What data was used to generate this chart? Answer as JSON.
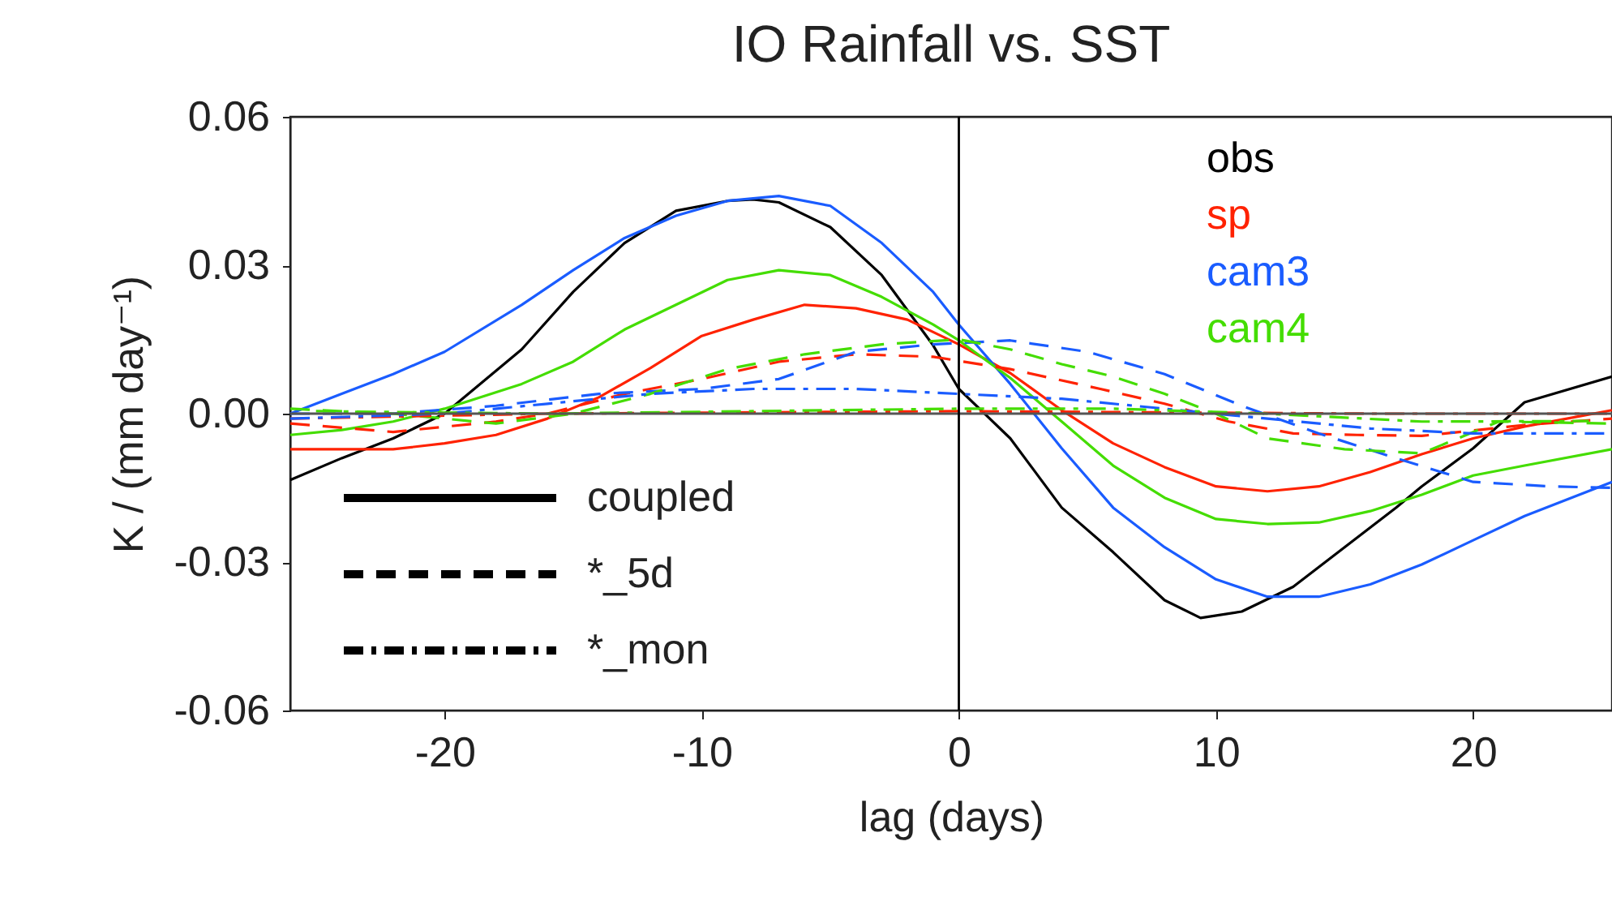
{
  "chart_data": {
    "type": "line",
    "title": "IO Rainfall vs. SST",
    "xlabel": "lag (days)",
    "ylabel": "K / (mm day⁻¹)",
    "xlim": [
      -26,
      25.4
    ],
    "xticks": [
      -20,
      -10,
      0,
      10,
      20
    ],
    "ylim": [
      -0.06,
      0.06
    ],
    "yticks": [
      -0.06,
      -0.03,
      {
        "value": 0,
        "label": "0.00"
      },
      0.03,
      0.06
    ],
    "grid": false,
    "annotations": [
      "coupled",
      "*_5d",
      "*_mon"
    ],
    "ref_lines": [
      {
        "axis": "y",
        "value": 0,
        "color": "#555555"
      },
      {
        "axis": "x",
        "value": 0,
        "color": "#000000"
      }
    ],
    "series": [
      {
        "name": "obs",
        "color": "#000000",
        "line_style": "solid",
        "x": [
          -26,
          -24,
          -22,
          -20,
          -17,
          -15,
          -13,
          -11,
          -9,
          -8,
          -7,
          -5,
          -3,
          -1,
          0,
          2,
          4,
          6,
          8,
          9.4,
          11,
          13,
          15,
          17,
          18,
          20,
          22,
          25.4
        ],
        "values": [
          -0.0134,
          -0.009,
          -0.005,
          0.0,
          0.013,
          0.0246,
          0.0345,
          0.041,
          0.043,
          0.0433,
          0.0427,
          0.0377,
          0.028,
          0.0138,
          0.005,
          -0.005,
          -0.019,
          -0.028,
          -0.0377,
          -0.0413,
          -0.04,
          -0.035,
          -0.027,
          -0.019,
          -0.0147,
          -0.007,
          0.0023,
          0.0075
        ]
      },
      {
        "name": "sp",
        "color": "#ff2200",
        "line_style": "solid",
        "x": [
          -26,
          -24,
          -22,
          -20,
          -18,
          -16,
          -14,
          -12,
          -10,
          -8,
          -6,
          -4,
          -2,
          0,
          2,
          4,
          6,
          8,
          10,
          12,
          14,
          16,
          18,
          20,
          22,
          25.4
        ],
        "values": [
          -0.0072,
          -0.0072,
          -0.0072,
          -0.006,
          -0.0043,
          -0.001,
          0.0033,
          0.0092,
          0.0157,
          0.019,
          0.022,
          0.0213,
          0.019,
          0.014,
          0.0082,
          0.0007,
          -0.006,
          -0.0108,
          -0.0147,
          -0.0157,
          -0.0147,
          -0.0118,
          -0.0082,
          -0.005,
          -0.0026,
          0.0007
        ]
      },
      {
        "name": "cam3",
        "color": "#1a5cff",
        "line_style": "solid",
        "x": [
          -26,
          -24,
          -22,
          -20,
          -17,
          -15,
          -13,
          -11,
          -9,
          -7,
          -5,
          -3,
          -1,
          0,
          2,
          4,
          6,
          8,
          10,
          12,
          14,
          16,
          18,
          20,
          22,
          25.4
        ],
        "values": [
          0.0,
          0.004,
          0.008,
          0.0125,
          0.022,
          0.029,
          0.0355,
          0.04,
          0.043,
          0.044,
          0.042,
          0.0345,
          0.0246,
          0.018,
          0.006,
          -0.007,
          -0.019,
          -0.027,
          -0.0335,
          -0.037,
          -0.037,
          -0.0345,
          -0.0305,
          -0.0256,
          -0.0207,
          -0.0138
        ]
      },
      {
        "name": "cam4",
        "color": "#44dd00",
        "line_style": "solid",
        "x": [
          -26,
          -24,
          -22,
          -20,
          -17,
          -15,
          -13,
          -11,
          -9,
          -7,
          -5,
          -3,
          -1,
          0,
          2,
          4,
          6,
          8,
          10,
          12,
          14,
          16,
          18,
          20,
          22,
          25.4
        ],
        "values": [
          -0.0043,
          -0.0033,
          -0.0016,
          0.001,
          0.006,
          0.0105,
          0.017,
          0.022,
          0.027,
          0.029,
          0.028,
          0.0236,
          0.018,
          0.0148,
          0.0072,
          -0.0016,
          -0.0105,
          -0.017,
          -0.0213,
          -0.0223,
          -0.022,
          -0.0197,
          -0.0164,
          -0.0125,
          -0.0105,
          -0.0072
        ]
      },
      {
        "color": "#ff2200",
        "line_style": "dashed",
        "x": [
          -26,
          -22,
          -18,
          -16,
          -13,
          -10,
          -7,
          -4,
          -1,
          2,
          5.5,
          8,
          10.5,
          13,
          15.5,
          18,
          22,
          25.4
        ],
        "values": [
          -0.002,
          -0.0037,
          -0.0016,
          0.0,
          0.004,
          0.007,
          0.0105,
          0.012,
          0.0115,
          0.009,
          0.005,
          0.002,
          -0.0016,
          -0.004,
          -0.0043,
          -0.0045,
          -0.0023,
          -0.001
        ]
      },
      {
        "color": "#1a5cff",
        "line_style": "dashed",
        "x": [
          -26,
          -22,
          -18,
          -14,
          -10,
          -7,
          -4,
          -1,
          2,
          5,
          8,
          11,
          14,
          17,
          20,
          23,
          25.4
        ],
        "values": [
          0.0,
          0.0,
          0.0016,
          0.004,
          0.005,
          0.007,
          0.0125,
          0.014,
          0.0148,
          0.0125,
          0.008,
          0.0016,
          -0.004,
          -0.009,
          -0.0138,
          -0.0147,
          -0.015
        ]
      },
      {
        "color": "#44dd00",
        "line_style": "dashed",
        "x": [
          -26,
          -22,
          -18,
          -15,
          -12,
          -9,
          -6,
          -3,
          0,
          2,
          4,
          6,
          8,
          10,
          12,
          15,
          18,
          21,
          25.4
        ],
        "values": [
          0.001,
          0.0,
          -0.002,
          0.0,
          0.004,
          0.009,
          0.012,
          0.014,
          0.015,
          0.013,
          0.01,
          0.0075,
          0.004,
          0.0,
          -0.005,
          -0.0072,
          -0.008,
          -0.0016,
          -0.002
        ]
      },
      {
        "color": "#ff2200",
        "line_style": "dashdot",
        "x": [
          -26,
          -16,
          0,
          16,
          25.4
        ],
        "values": [
          -0.001,
          0.0,
          0.0005,
          0.0,
          0.0
        ]
      },
      {
        "color": "#1a5cff",
        "line_style": "dashdot",
        "x": [
          -26,
          -20,
          -16,
          -12,
          -8,
          -4,
          0,
          4,
          8,
          12,
          16,
          20,
          25.4
        ],
        "values": [
          -0.001,
          0.0,
          0.002,
          0.004,
          0.005,
          0.005,
          0.004,
          0.003,
          0.001,
          -0.001,
          -0.003,
          -0.004,
          -0.004
        ]
      },
      {
        "color": "#44dd00",
        "line_style": "dashdot",
        "x": [
          -25,
          -16,
          -8,
          0,
          6,
          12,
          18,
          24.5
        ],
        "values": [
          0.0005,
          0.0,
          0.0005,
          0.001,
          0.001,
          0.0,
          -0.0016,
          -0.0015
        ]
      }
    ]
  }
}
